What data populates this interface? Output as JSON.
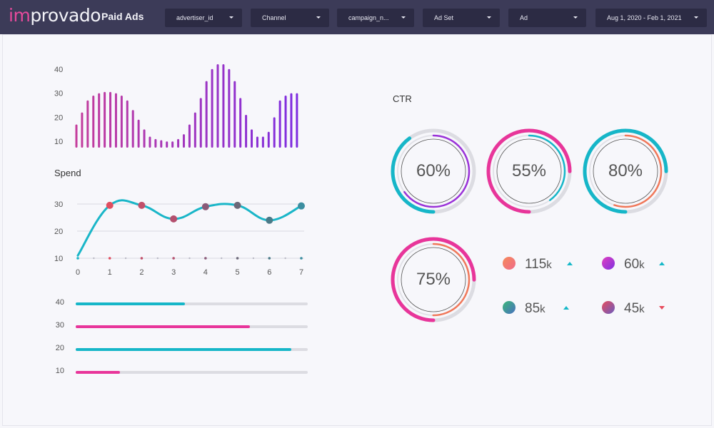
{
  "header": {
    "logo": {
      "prefix": "im",
      "rest": "provado"
    },
    "title": "Paid Ads",
    "filters": [
      {
        "label": "advertiser_id"
      },
      {
        "label": "Channel"
      },
      {
        "label": "campaign_n..."
      },
      {
        "label": "Ad Set"
      },
      {
        "label": "Ad"
      },
      {
        "label": "Aug 1, 2020 - Feb 1, 2021"
      }
    ]
  },
  "chart_data": [
    {
      "type": "bar",
      "title": "",
      "yticks": [
        "10",
        "20",
        "30",
        "40"
      ],
      "ylim": [
        8,
        42
      ],
      "values": [
        17,
        22,
        27,
        29,
        30,
        30.5,
        30.5,
        30,
        29,
        27,
        23,
        19,
        15,
        12,
        11,
        10.5,
        10,
        10,
        11,
        13,
        17,
        22,
        28,
        35,
        40,
        42,
        42,
        40,
        35,
        28,
        21,
        15,
        12,
        12,
        14,
        20,
        27,
        29,
        30,
        30
      ],
      "color_start": "#c43d9c",
      "color_end": "#7e2de0"
    },
    {
      "type": "line",
      "title": "Spend",
      "x": [
        0,
        1,
        2,
        3,
        4,
        5,
        6,
        7
      ],
      "xticks": [
        "0",
        "1",
        "2",
        "3",
        "4",
        "5",
        "6",
        "7"
      ],
      "yticks": [
        "10",
        "20",
        "30"
      ],
      "ylim": [
        10,
        30
      ],
      "values": [
        11,
        29.5,
        29.5,
        24.5,
        29,
        29.5,
        24,
        29.3
      ],
      "line_color": "#1ab6c8",
      "point_colors": [
        "#1ab6c8",
        "#e04e60",
        "#c2506a",
        "#b4506e",
        "#8a5a78",
        "#6c6878",
        "#4a7a88",
        "#3c8ea0"
      ]
    },
    {
      "type": "bar",
      "orientation": "horizontal",
      "bars": [
        {
          "label": "40",
          "value": 0.47,
          "color": "#16b6c8"
        },
        {
          "label": "30",
          "value": 0.75,
          "color": "#e8359a"
        },
        {
          "label": "20",
          "value": 0.93,
          "color": "#16b6c8"
        },
        {
          "label": "10",
          "value": 0.19,
          "color": "#e8359a"
        }
      ]
    }
  ],
  "ctr": {
    "title": "CTR",
    "gauges": [
      {
        "value": "60%",
        "outer": 0.4,
        "inner": 0.65,
        "outer_color": "#16b6c8",
        "inner_color": "#9a32d8"
      },
      {
        "value": "55%",
        "outer": 0.75,
        "inner": 0.4,
        "outer_color": "#e8359a",
        "inner_color": "#16b6c8"
      },
      {
        "value": "80%",
        "outer": 0.75,
        "inner": 0.55,
        "outer_color": "#16b6c8",
        "inner_color": "#f0785a"
      },
      {
        "value": "75%",
        "outer": 0.75,
        "inner": 0.5,
        "outer_color": "#e8359a",
        "inner_color": "#f0785a"
      }
    ],
    "stats": [
      {
        "value": "115",
        "unit": "k",
        "trend": "up",
        "color_a": "#f58a5a",
        "color_b": "#f06a8a"
      },
      {
        "value": "60",
        "unit": "k",
        "trend": "up",
        "color_a": "#e040c0",
        "color_b": "#8030e0"
      },
      {
        "value": "85",
        "unit": "k",
        "trend": "up",
        "color_a": "#3ab878",
        "color_b": "#4a70c0"
      },
      {
        "value": "45",
        "unit": "k",
        "trend": "down",
        "color_a": "#e84c5c",
        "color_b": "#6a5cc0"
      }
    ]
  }
}
